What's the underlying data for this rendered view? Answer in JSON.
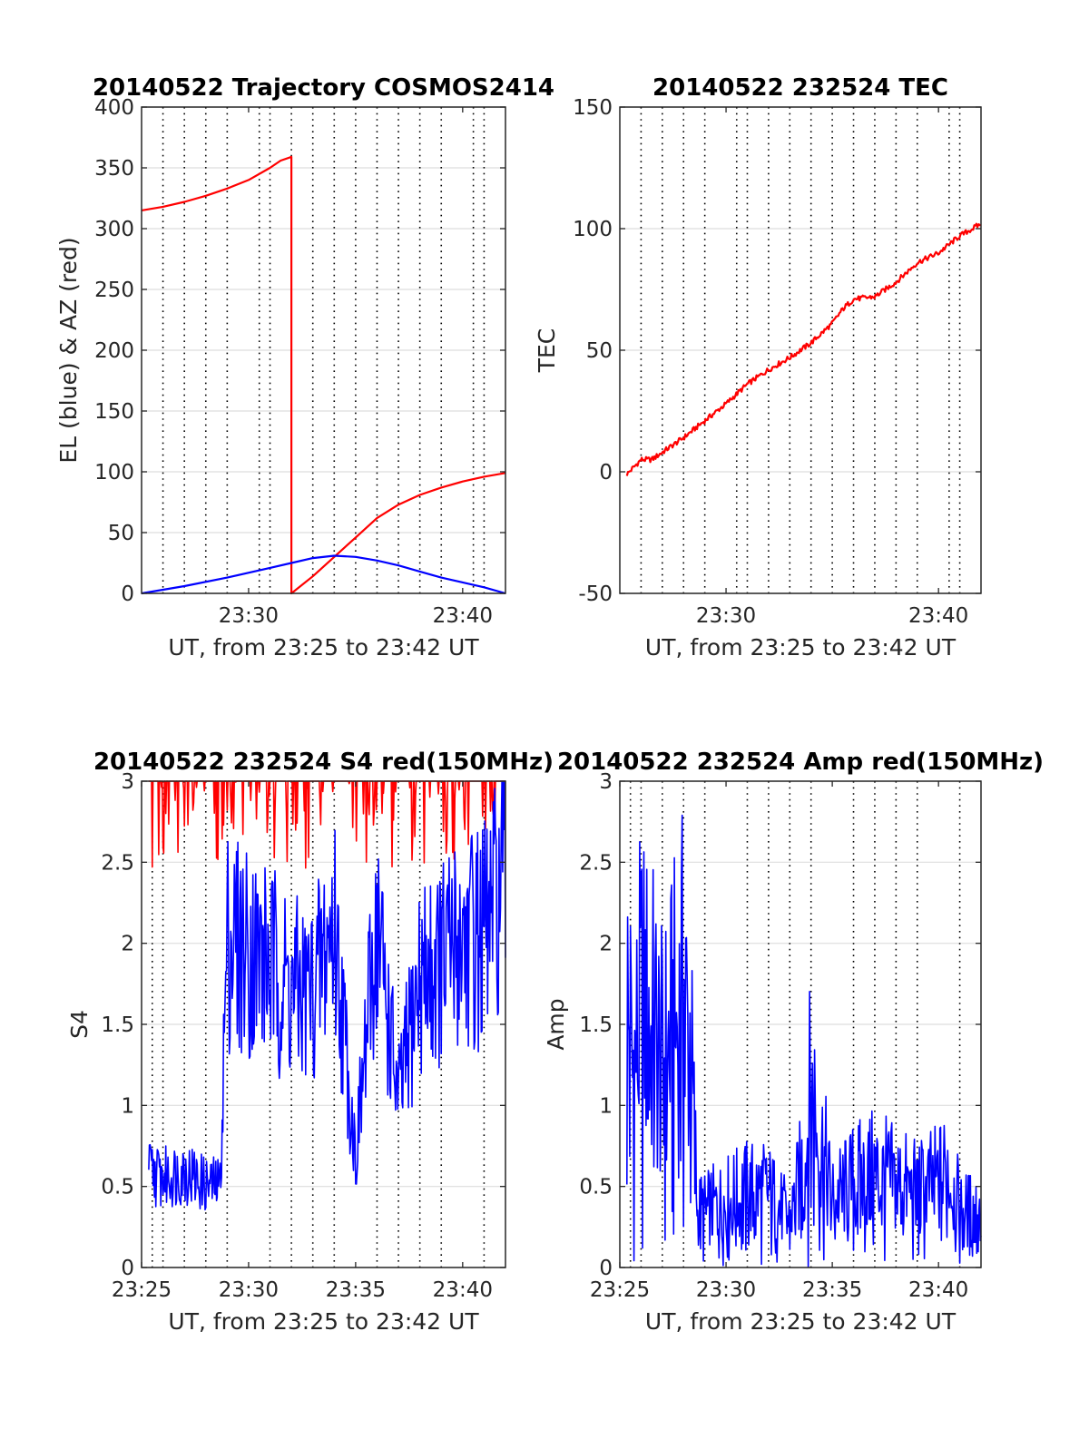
{
  "figure": {
    "background": "#ffffff",
    "red": "#ff0000",
    "blue": "#0000ff"
  },
  "chart_data": [
    {
      "type": "line",
      "title": "20140522 Trajectory COSMOS2414",
      "xlabel": "UT, from 23:25 to 23:42 UT",
      "ylabel": "EL (blue) & AZ (red)",
      "xlim": [
        "23:25",
        "23:42"
      ],
      "ylim": [
        0,
        400
      ],
      "yticks": [
        0,
        50,
        100,
        150,
        200,
        250,
        300,
        350,
        400
      ],
      "yticklabels": [
        "0",
        "50",
        "100",
        "150",
        "200",
        "250",
        "300",
        "350",
        "400"
      ],
      "xticks": [
        "23:30",
        "23:40"
      ],
      "xticklabels": [
        "23:30",
        "23:40"
      ],
      "vertical_dotted_gridlines": [
        "23:26:00",
        "23:27:00",
        "23:28:00",
        "23:29:00",
        "23:30:30",
        "23:31:00",
        "23:32:00",
        "23:33:00",
        "23:34:00",
        "23:35:00",
        "23:36:00",
        "23:37:00",
        "23:38:00",
        "23:39:00",
        "23:40:30",
        "23:41:00"
      ],
      "series": [
        {
          "color": "#ff0000",
          "x": [
            "23:25:00",
            "23:26:00",
            "23:27:00",
            "23:28:00",
            "23:29:00",
            "23:30:00",
            "23:31:00",
            "23:31:30",
            "23:32:00",
            "23:32:00",
            "23:33:00",
            "23:34:00",
            "23:35:00",
            "23:36:00",
            "23:37:00",
            "23:38:00",
            "23:39:00",
            "23:40:00",
            "23:41:00",
            "23:42:00"
          ],
          "values": [
            315,
            318,
            322,
            327,
            333,
            340,
            350,
            356,
            359,
            0,
            14,
            30,
            46,
            62,
            73,
            81,
            87,
            92,
            96,
            99
          ]
        },
        {
          "color": "#0000ff",
          "x": [
            "23:25:00",
            "23:27:00",
            "23:29:00",
            "23:31:00",
            "23:32:00",
            "23:33:00",
            "23:34:00",
            "23:35:00",
            "23:36:00",
            "23:37:00",
            "23:38:00",
            "23:39:00",
            "23:40:00",
            "23:41:00",
            "23:42:00"
          ],
          "values": [
            0,
            6,
            13,
            21,
            25,
            29,
            31,
            30,
            27,
            23,
            18,
            13,
            9,
            5,
            0
          ]
        }
      ]
    },
    {
      "type": "line",
      "title": "20140522 232524 TEC",
      "xlabel": "UT, from 23:25 to 23:42 UT",
      "ylabel": "TEC",
      "xlim": [
        "23:25",
        "23:42"
      ],
      "ylim": [
        -50,
        150
      ],
      "yticks": [
        -50,
        0,
        50,
        100,
        150
      ],
      "yticklabels": [
        "-50",
        "0",
        "50",
        "100",
        "150"
      ],
      "xticks": [
        "23:30",
        "23:40"
      ],
      "xticklabels": [
        "23:30",
        "23:40"
      ],
      "vertical_dotted_gridlines": [
        "23:26:00",
        "23:27:00",
        "23:28:00",
        "23:29:00",
        "23:30:30",
        "23:31:00",
        "23:32:00",
        "23:33:00",
        "23:34:00",
        "23:35:00",
        "23:36:00",
        "23:37:00",
        "23:38:00",
        "23:39:00",
        "23:40:30",
        "23:41:00"
      ],
      "series": [
        {
          "color": "#ff0000",
          "x": [
            "23:25:20",
            "23:26:00",
            "23:26:30",
            "23:27:00",
            "23:27:30",
            "23:28:00",
            "23:29:00",
            "23:30:00",
            "23:31:00",
            "23:32:00",
            "23:33:00",
            "23:34:00",
            "23:35:00",
            "23:35:30",
            "23:36:00",
            "23:37:00",
            "23:38:00",
            "23:39:00",
            "23:40:00",
            "23:41:00",
            "23:42:00"
          ],
          "values": [
            -1,
            5,
            5,
            8,
            11,
            14,
            21,
            28,
            36,
            42,
            47,
            53,
            61,
            67,
            71,
            72,
            78,
            86,
            90,
            97,
            102
          ]
        }
      ]
    },
    {
      "type": "line",
      "title": "20140522 232524 S4 red(150MHz)",
      "xlabel": "UT, from 23:25 to 23:42 UT",
      "ylabel": "S4",
      "xlim": [
        "23:25",
        "23:42"
      ],
      "ylim": [
        0,
        3
      ],
      "yticks": [
        0,
        0.5,
        1,
        1.5,
        2,
        2.5,
        3
      ],
      "yticklabels": [
        "0",
        "0.5",
        "1",
        "1.5",
        "2",
        "2.5",
        "3"
      ],
      "xticks": [
        "23:25",
        "23:30",
        "23:35",
        "23:40"
      ],
      "xticklabels": [
        "23:25",
        "23:30",
        "23:35",
        "23:40"
      ],
      "vertical_dotted_gridlines": [
        "23:25:30",
        "23:26:00",
        "23:27:00",
        "23:28:00",
        "23:29:00",
        "23:31:00",
        "23:32:00",
        "23:33:00",
        "23:34:00",
        "23:36:00",
        "23:37:00",
        "23:38:00",
        "23:39:00",
        "23:41:00"
      ],
      "series": [
        {
          "color": "#ff0000",
          "x": [
            "23:25:20",
            "23:28:40",
            "23:32:00",
            "23:35:00",
            "23:38:00",
            "23:42:00"
          ],
          "values": [
            3,
            3,
            3,
            3,
            3,
            3
          ]
        },
        {
          "color": "#0000ff",
          "x": [
            "23:25:20",
            "23:26:00",
            "23:27:00",
            "23:28:00",
            "23:28:40",
            "23:29:00",
            "23:30:00",
            "23:31:00",
            "23:32:00",
            "23:33:00",
            "23:34:00",
            "23:35:00",
            "23:36:00",
            "23:37:00",
            "23:38:00",
            "23:39:00",
            "23:40:00",
            "23:41:00",
            "23:42:00"
          ],
          "values": [
            0.7,
            0.65,
            0.7,
            0.6,
            0.6,
            2.4,
            2.3,
            2.2,
            2.0,
            2.0,
            2.5,
            0.8,
            2.5,
            1.2,
            2.1,
            2.2,
            2.4,
            2.4,
            2.8
          ]
        }
      ]
    },
    {
      "type": "line",
      "title": "20140522 232524 Amp red(150MHz)",
      "xlabel": "UT, from 23:25 to 23:42 UT",
      "ylabel": "Amp",
      "xlim": [
        "23:25",
        "23:42"
      ],
      "ylim": [
        0,
        3
      ],
      "yticks": [
        0,
        0.5,
        1,
        1.5,
        2,
        2.5,
        3
      ],
      "yticklabels": [
        "0",
        "0.5",
        "1",
        "1.5",
        "2",
        "2.5",
        "3"
      ],
      "xticks": [
        "23:25",
        "23:30",
        "23:35",
        "23:40"
      ],
      "xticklabels": [
        "23:25",
        "23:30",
        "23:35",
        "23:40"
      ],
      "vertical_dotted_gridlines": [
        "23:25:30",
        "23:26:00",
        "23:27:00",
        "23:28:00",
        "23:29:00",
        "23:31:00",
        "23:32:00",
        "23:33:00",
        "23:34:00",
        "23:36:00",
        "23:37:00",
        "23:38:00",
        "23:39:00",
        "23:41:00"
      ],
      "series": [
        {
          "color": "#0000ff",
          "x": [
            "23:25:20",
            "23:25:40",
            "23:26:00",
            "23:26:30",
            "23:27:00",
            "23:27:30",
            "23:28:00",
            "23:28:20",
            "23:28:40",
            "23:29:00",
            "23:30:00",
            "23:31:00",
            "23:32:00",
            "23:33:00",
            "23:33:40",
            "23:34:00",
            "23:35:00",
            "23:36:00",
            "23:37:00",
            "23:38:00",
            "23:39:00",
            "23:40:00",
            "23:40:30",
            "23:41:00",
            "23:42:00"
          ],
          "values": [
            2.8,
            2.1,
            2.8,
            2.6,
            2.1,
            2.5,
            2.9,
            2.3,
            0.6,
            0.6,
            0.7,
            0.8,
            0.8,
            0.5,
            1.1,
            1.9,
            0.7,
            0.9,
            1.0,
            0.9,
            0.8,
            0.9,
            1.1,
            0.6,
            0.6
          ]
        }
      ]
    }
  ]
}
